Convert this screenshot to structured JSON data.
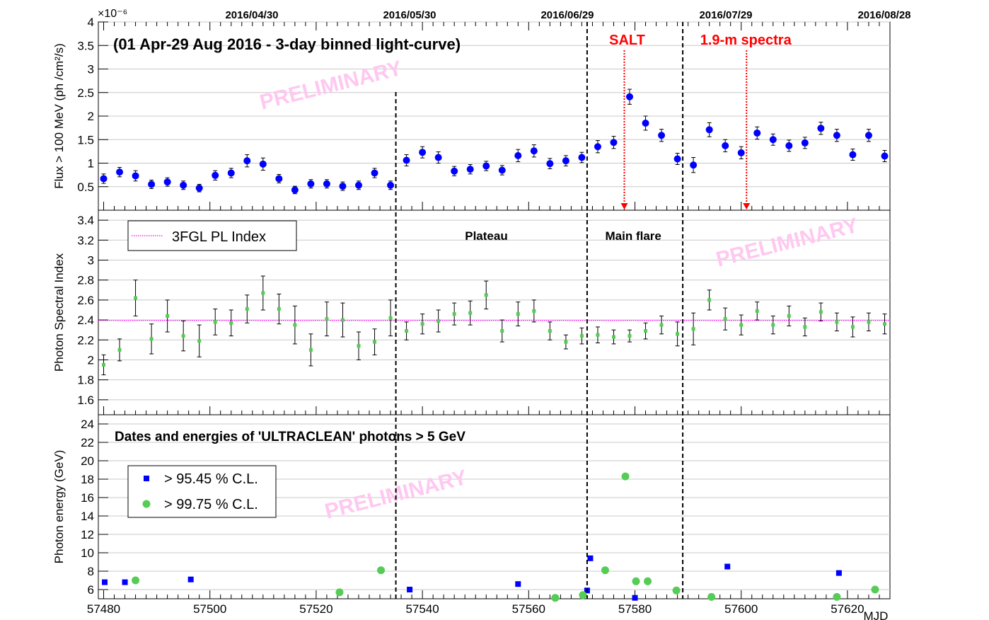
{
  "top_date_labels": [
    "2016/04/30",
    "2016/05/30",
    "2016/06/29",
    "2016/07/29",
    "2016/08/28"
  ],
  "x_axis_label": "MJD",
  "chart_data": [
    {
      "type": "scatter",
      "title": "(01 Apr-29 Aug 2016 - 3-day binned light-curve)",
      "ylabel": "Flux > 100 MeV (ph /cm²/s)",
      "y_multiplier": "×10⁻⁶",
      "xlim": [
        57479,
        57628
      ],
      "ylim": [
        0,
        4
      ],
      "y_ticks": [
        0.5,
        1,
        1.5,
        2,
        2.5,
        3,
        3.5,
        4
      ],
      "y_tick_labels": [
        "0.5",
        "1",
        "1.5",
        "2",
        "2.5",
        "3",
        "3.5",
        "4"
      ],
      "grid": true,
      "marker_color": "#0000ff",
      "watermark": "PRELIMINARY",
      "annotations": [
        {
          "text": "SALT",
          "x": 57578,
          "color": "#ff0000"
        },
        {
          "text": "1.9-m spectra",
          "x": 57601,
          "color": "#ff0000"
        }
      ],
      "series": [
        {
          "x": [
            57480,
            57483,
            57486,
            57489,
            57492,
            57495,
            57498,
            57501,
            57504,
            57507,
            57510,
            57513,
            57516,
            57519,
            57522,
            57525,
            57528,
            57531,
            57534,
            57537,
            57540,
            57543,
            57546,
            57549,
            57552,
            57555,
            57558,
            57561,
            57564,
            57567,
            57570,
            57573,
            57576,
            57579,
            57582,
            57585,
            57588,
            57591,
            57594,
            57597,
            57600,
            57603,
            57606,
            57609,
            57612,
            57615,
            57618,
            57621,
            57624,
            57627
          ],
          "y": [
            0.67,
            0.81,
            0.73,
            0.55,
            0.6,
            0.53,
            0.47,
            0.74,
            0.79,
            1.05,
            0.98,
            0.67,
            0.43,
            0.56,
            0.56,
            0.51,
            0.53,
            0.79,
            0.53,
            1.06,
            1.23,
            1.12,
            0.83,
            0.87,
            0.94,
            0.85,
            1.16,
            1.26,
            0.99,
            1.05,
            1.12,
            1.35,
            1.44,
            2.41,
            1.85,
            1.59,
            1.09,
            0.96,
            1.71,
            1.37,
            1.22,
            1.64,
            1.5,
            1.37,
            1.43,
            1.74,
            1.59,
            1.18,
            1.59,
            1.15
          ],
          "err": [
            0.1,
            0.1,
            0.11,
            0.09,
            0.09,
            0.09,
            0.08,
            0.1,
            0.1,
            0.13,
            0.13,
            0.09,
            0.08,
            0.09,
            0.09,
            0.09,
            0.09,
            0.1,
            0.09,
            0.12,
            0.12,
            0.12,
            0.1,
            0.1,
            0.1,
            0.1,
            0.13,
            0.13,
            0.11,
            0.11,
            0.11,
            0.13,
            0.13,
            0.16,
            0.15,
            0.13,
            0.12,
            0.16,
            0.15,
            0.13,
            0.13,
            0.13,
            0.12,
            0.12,
            0.12,
            0.13,
            0.13,
            0.12,
            0.13,
            0.12
          ]
        }
      ]
    },
    {
      "type": "scatter",
      "ylabel": "Photon Spectral Index",
      "xlim": [
        57479,
        57628
      ],
      "ylim": [
        1.45,
        3.5
      ],
      "y_ticks": [
        1.6,
        1.8,
        2,
        2.2,
        2.4,
        2.6,
        2.8,
        3,
        3.2,
        3.4
      ],
      "y_tick_labels": [
        "1.6",
        "1.8",
        "2",
        "2.2",
        "2.4",
        "2.6",
        "2.8",
        "3",
        "3.2",
        "3.4"
      ],
      "grid": true,
      "legend": {
        "placement": "top-left",
        "entries": [
          "3FGL PL Index"
        ]
      },
      "reference_line": {
        "name": "3FGL PL Index",
        "y": 2.395,
        "color": "#ff00ff"
      },
      "region_labels": [
        {
          "text": "Plateau",
          "x": 57552
        },
        {
          "text": "Main flare",
          "x": 57580
        }
      ],
      "marker_color": "#55cc55",
      "watermark": "PRELIMINARY",
      "series": [
        {
          "x": [
            57480,
            57483,
            57486,
            57489,
            57492,
            57495,
            57498,
            57501,
            57504,
            57507,
            57510,
            57513,
            57516,
            57519,
            57522,
            57525,
            57528,
            57531,
            57534,
            57537,
            57540,
            57543,
            57546,
            57549,
            57552,
            57555,
            57558,
            57561,
            57564,
            57567,
            57570,
            57573,
            57576,
            57579,
            57582,
            57585,
            57588,
            57591,
            57594,
            57597,
            57600,
            57603,
            57606,
            57609,
            57612,
            57615,
            57618,
            57621,
            57624,
            57627
          ],
          "y": [
            1.95,
            2.1,
            2.62,
            2.21,
            2.44,
            2.24,
            2.19,
            2.38,
            2.37,
            2.51,
            2.67,
            2.51,
            2.35,
            2.1,
            2.41,
            2.4,
            2.14,
            2.18,
            2.42,
            2.29,
            2.36,
            2.39,
            2.46,
            2.47,
            2.65,
            2.29,
            2.46,
            2.49,
            2.29,
            2.18,
            2.24,
            2.25,
            2.23,
            2.24,
            2.29,
            2.35,
            2.26,
            2.31,
            2.6,
            2.41,
            2.35,
            2.49,
            2.35,
            2.44,
            2.33,
            2.48,
            2.38,
            2.33,
            2.38,
            2.36
          ],
          "err": [
            0.1,
            0.11,
            0.18,
            0.15,
            0.16,
            0.15,
            0.16,
            0.13,
            0.13,
            0.14,
            0.17,
            0.15,
            0.19,
            0.16,
            0.17,
            0.17,
            0.14,
            0.13,
            0.18,
            0.09,
            0.1,
            0.11,
            0.11,
            0.12,
            0.14,
            0.11,
            0.12,
            0.11,
            0.09,
            0.07,
            0.08,
            0.08,
            0.07,
            0.06,
            0.08,
            0.09,
            0.12,
            0.16,
            0.1,
            0.11,
            0.1,
            0.09,
            0.09,
            0.1,
            0.09,
            0.09,
            0.09,
            0.1,
            0.09,
            0.1
          ]
        }
      ]
    },
    {
      "type": "scatter",
      "title": "Dates and energies of 'ULTRACLEAN' photons > 5 GeV",
      "ylabel": "Photon energy (GeV)",
      "xlabel": "MJD",
      "xlim": [
        57479,
        57628
      ],
      "ylim": [
        5,
        25
      ],
      "y_ticks": [
        6,
        8,
        10,
        12,
        14,
        16,
        18,
        20,
        22,
        24
      ],
      "y_tick_labels": [
        "6",
        "8",
        "10",
        "12",
        "14",
        "16",
        "18",
        "20",
        "22",
        "24"
      ],
      "x_ticks": [
        57480,
        57500,
        57520,
        57540,
        57560,
        57580,
        57600,
        57620
      ],
      "x_tick_labels": [
        "57480",
        "57500",
        "57520",
        "57540",
        "57560",
        "57580",
        "57600",
        "57620"
      ],
      "grid": true,
      "legend": {
        "placement": "top-left",
        "entries": [
          "> 95.45 % C.L.",
          "> 99.75 % C.L."
        ]
      },
      "watermark": "PRELIMINARY",
      "series": [
        {
          "name": "> 95.45 % C.L.",
          "marker": "square",
          "color": "#0000ff",
          "x": [
            57480.2,
            57484.0,
            57496.4,
            57537.6,
            57558.0,
            57571.0,
            57571.6,
            57580.0,
            57597.4,
            57618.4
          ],
          "y": [
            6.8,
            6.8,
            7.1,
            6.0,
            6.6,
            5.9,
            9.4,
            5.1,
            8.5,
            7.8
          ]
        },
        {
          "name": "> 99.75 % C.L.",
          "marker": "circle",
          "color": "#55cc55",
          "x": [
            57486.0,
            57524.4,
            57532.2,
            57565.0,
            57570.2,
            57574.4,
            57578.2,
            57580.2,
            57582.4,
            57587.8,
            57594.4,
            57618.0,
            57625.2
          ],
          "y": [
            7.0,
            5.7,
            8.1,
            5.1,
            5.4,
            8.1,
            18.3,
            6.9,
            6.9,
            5.9,
            5.2,
            5.2,
            6.0
          ]
        }
      ]
    }
  ],
  "vertical_lines": [
    57535,
    57571,
    57589
  ]
}
